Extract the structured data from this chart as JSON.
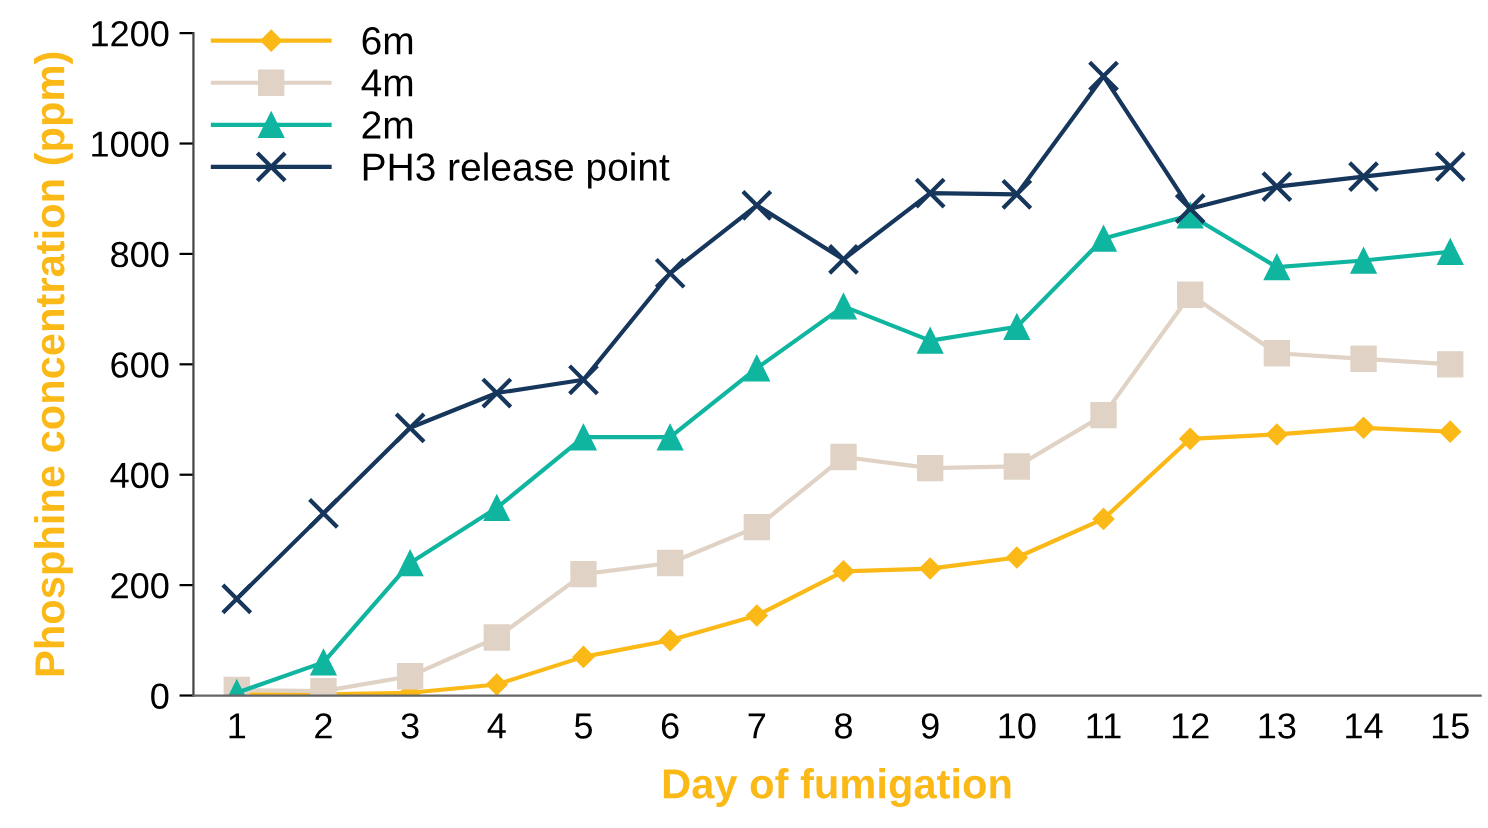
{
  "chart_data": {
    "type": "line",
    "xlabel": "Day of fumigation",
    "ylabel": "Phosphine concentration (ppm)",
    "x": [
      1,
      2,
      3,
      4,
      5,
      6,
      7,
      8,
      9,
      10,
      11,
      12,
      13,
      14,
      15
    ],
    "xlim": [
      0.5,
      15.35
    ],
    "xticks": [
      1,
      2,
      3,
      4,
      5,
      6,
      7,
      8,
      9,
      10,
      11,
      12,
      13,
      14,
      15
    ],
    "ylim": [
      0,
      1200
    ],
    "yticks": [
      0,
      200,
      400,
      600,
      800,
      1000,
      1200
    ],
    "grid": false,
    "legend": "top left",
    "series": [
      {
        "name": "6m",
        "color": "#fbb917",
        "marker": "diamond",
        "values": [
          2,
          2,
          5,
          20,
          70,
          100,
          145,
          225,
          230,
          250,
          320,
          465,
          473,
          485,
          478
        ]
      },
      {
        "name": "4m",
        "color": "#e0d3c5",
        "marker": "square",
        "values": [
          10,
          8,
          35,
          105,
          220,
          240,
          305,
          432,
          412,
          415,
          508,
          726,
          620,
          610,
          600
        ]
      },
      {
        "name": "2m",
        "color": "#10b5a0",
        "marker": "triangle",
        "values": [
          5,
          60,
          240,
          340,
          468,
          468,
          593,
          705,
          643,
          668,
          828,
          870,
          776,
          788,
          804
        ]
      },
      {
        "name": "PH3 release point",
        "color": "#16365c",
        "marker": "cross",
        "values": [
          175,
          330,
          485,
          548,
          572,
          765,
          888,
          790,
          910,
          908,
          1122,
          882,
          922,
          940,
          958
        ]
      }
    ]
  }
}
